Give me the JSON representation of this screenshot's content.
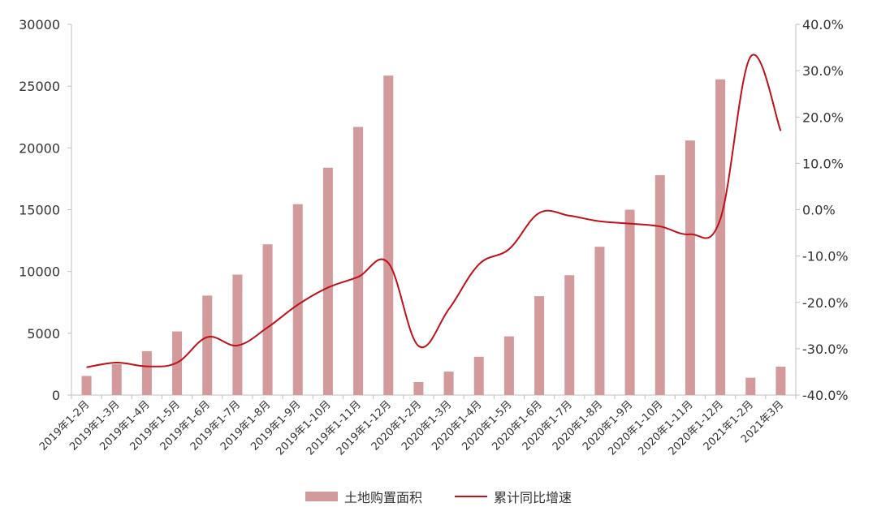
{
  "chart_data": {
    "type": "bar",
    "categories": [
      "2019年1-2月",
      "2019年1-3月",
      "2019年1-4月",
      "2019年1-5月",
      "2019年1-6月",
      "2019年1-7月",
      "2019年1-8月",
      "2019年1-9月",
      "2019年1-10月",
      "2019年1-11月",
      "2019年1-12月",
      "2020年1-2月",
      "2020年1-3月",
      "2020年1-4月",
      "2020年1-5月",
      "2020年1-6月",
      "2020年1-7月",
      "2020年1-8月",
      "2020年1-9月",
      "2020年1-10月",
      "2020年1-11月",
      "2020年1-12月",
      "2021年1-2月",
      "2021年3月"
    ],
    "series": [
      {
        "name": "土地购置面积",
        "type": "bar",
        "axis": "left",
        "color": "#d39a9b",
        "values": [
          1550,
          2500,
          3550,
          5150,
          8050,
          9750,
          12200,
          15450,
          18400,
          21700,
          25850,
          1050,
          1900,
          3100,
          4750,
          8000,
          9700,
          12000,
          15000,
          17800,
          20600,
          25550,
          1400,
          2300
        ]
      },
      {
        "name": "累计同比增速",
        "type": "line",
        "axis": "right",
        "color": "#c0101a",
        "values": [
          -34.0,
          -33.0,
          -33.8,
          -33.0,
          -27.5,
          -29.3,
          -25.4,
          -20.5,
          -16.8,
          -14.5,
          -11.5,
          -29.4,
          -21.5,
          -11.8,
          -8.5,
          -0.7,
          -1.3,
          -2.5,
          -3.0,
          -3.6,
          -5.3,
          -2.0,
          33.0,
          17.0
        ]
      }
    ],
    "left_axis": {
      "ylim": [
        0,
        30000
      ],
      "ticks": [
        "0",
        "5000",
        "10000",
        "15000",
        "20000",
        "25000",
        "30000"
      ]
    },
    "right_axis": {
      "ylim": [
        -40,
        40
      ],
      "ticks": [
        "-40.0%",
        "-30.0%",
        "-20.0%",
        "-10.0%",
        "0.0%",
        "10.0%",
        "20.0%",
        "30.0%",
        "40.0%"
      ]
    },
    "grid": false,
    "legend": "bottom-center"
  },
  "legend": {
    "bar_label": "土地购置面积",
    "line_label": "累计同比增速"
  }
}
